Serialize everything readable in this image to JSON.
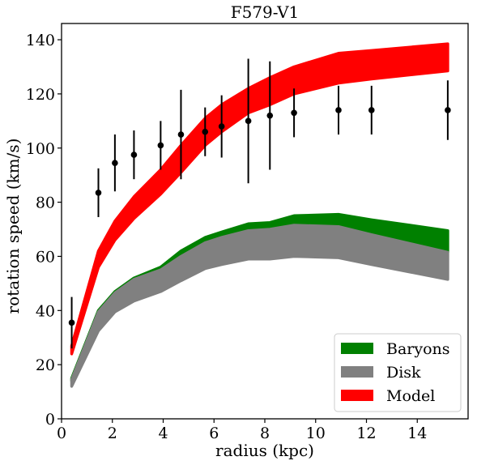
{
  "chart_data": {
    "type": "area",
    "title": "F579-V1",
    "xlabel": "radius (kpc)",
    "ylabel": "rotation speed (km/s)",
    "xlim": [
      0,
      16
    ],
    "ylim": [
      0,
      146
    ],
    "xticks": [
      0,
      2,
      4,
      6,
      8,
      10,
      12,
      14
    ],
    "yticks": [
      0,
      20,
      40,
      60,
      80,
      100,
      120,
      140
    ],
    "grid": false,
    "legend_position": "lower-right",
    "x": [
      0.4,
      1.45,
      2.1,
      2.85,
      3.9,
      4.7,
      5.65,
      6.3,
      7.35,
      8.2,
      9.15,
      10.9,
      12.2,
      15.2
    ],
    "series": [
      {
        "name": "Baryons",
        "color": "#008000",
        "lower": [
          14,
          34,
          40,
          44,
          48,
          52,
          57,
          59,
          62,
          63,
          64.5,
          65.5,
          64,
          61.5
        ],
        "upper": [
          15,
          40,
          47,
          52,
          56,
          62,
          67,
          69,
          72,
          72.5,
          75,
          75.5,
          73.5,
          69.5
        ]
      },
      {
        "name": "Disk",
        "color": "#808080",
        "lower": [
          12,
          32.5,
          39.5,
          43.5,
          47,
          51,
          55.5,
          57,
          59,
          59,
          60,
          59.5,
          57,
          51.5
        ],
        "upper": [
          14.5,
          39.5,
          46.5,
          51.5,
          55,
          60,
          65,
          67,
          69.5,
          70,
          71.5,
          71,
          68,
          61.5
        ]
      },
      {
        "name": "Model",
        "color": "#ff0000",
        "lower": [
          24,
          56,
          66,
          74,
          83,
          91,
          101,
          106,
          113,
          116,
          120,
          124,
          125.5,
          128.5
        ],
        "upper": [
          27,
          62,
          73,
          82,
          92,
          101,
          111,
          116,
          122,
          126,
          130,
          135,
          136,
          138.5
        ]
      },
      {
        "name": "observed",
        "type": "scatter",
        "color": "#000000",
        "y": [
          35.5,
          83.5,
          94.5,
          97.5,
          101,
          105,
          106,
          108,
          110,
          112,
          113,
          114,
          114,
          114
        ],
        "yerr": [
          9.5,
          9,
          10.5,
          9,
          9,
          16.5,
          9,
          11.5,
          23,
          20,
          9,
          9,
          9,
          11
        ]
      }
    ]
  }
}
